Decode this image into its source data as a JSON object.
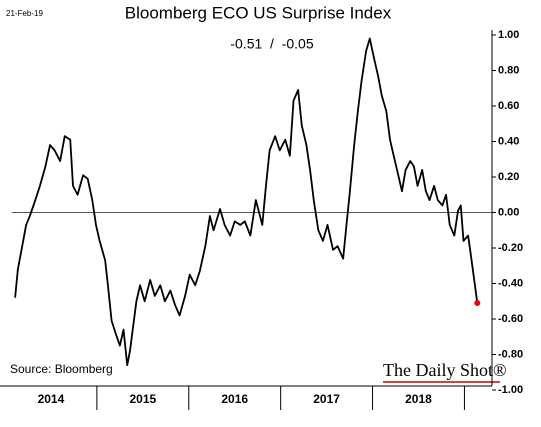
{
  "chart_data": {
    "type": "line",
    "title": "Bloomberg ECO US Surprise Index",
    "date_note": "21-Feb-19",
    "subtitle": "-0.51  /  -0.05",
    "source": "Source: Bloomberg",
    "brand": "The Daily Shot®",
    "x": [
      2014.11,
      2014.14,
      2014.18,
      2014.23,
      2014.27,
      2014.33,
      2014.38,
      2014.44,
      2014.49,
      2014.54,
      2014.6,
      2014.65,
      2014.71,
      2014.74,
      2014.79,
      2014.85,
      2014.9,
      2014.95,
      2014.99,
      2015.03,
      2015.09,
      2015.12,
      2015.16,
      2015.21,
      2015.25,
      2015.29,
      2015.33,
      2015.36,
      2015.39,
      2015.43,
      2015.47,
      2015.52,
      2015.58,
      2015.63,
      2015.69,
      2015.74,
      2015.8,
      2015.85,
      2015.9,
      2015.96,
      2016.01,
      2016.07,
      2016.12,
      2016.18,
      2016.23,
      2016.27,
      2016.34,
      2016.39,
      2016.45,
      2016.5,
      2016.56,
      2016.61,
      2016.67,
      2016.73,
      2016.8,
      2016.84,
      2016.88,
      2016.94,
      2016.99,
      2017.05,
      2017.1,
      2017.14,
      2017.19,
      2017.23,
      2017.28,
      2017.32,
      2017.36,
      2017.41,
      2017.46,
      2017.51,
      2017.57,
      2017.62,
      2017.68,
      2017.72,
      2017.75,
      2017.8,
      2017.84,
      2017.88,
      2017.93,
      2017.97,
      2018.02,
      2018.06,
      2018.1,
      2018.15,
      2018.19,
      2018.23,
      2018.28,
      2018.32,
      2018.36,
      2018.41,
      2018.45,
      2018.49,
      2018.54,
      2018.58,
      2018.62,
      2018.67,
      2018.71,
      2018.76,
      2018.8,
      2018.84,
      2018.89,
      2018.93,
      2018.96,
      2018.99,
      2019.04,
      2019.07,
      2019.14
    ],
    "series": [
      {
        "name": "Bloomberg ECO US Surprise Index",
        "color": "#000000",
        "values": [
          -0.48,
          -0.32,
          -0.21,
          -0.07,
          -0.02,
          0.07,
          0.15,
          0.26,
          0.38,
          0.35,
          0.29,
          0.43,
          0.41,
          0.15,
          0.1,
          0.21,
          0.19,
          0.07,
          -0.07,
          -0.16,
          -0.27,
          -0.41,
          -0.61,
          -0.69,
          -0.75,
          -0.66,
          -0.86,
          -0.78,
          -0.66,
          -0.5,
          -0.41,
          -0.5,
          -0.38,
          -0.47,
          -0.41,
          -0.5,
          -0.44,
          -0.52,
          -0.58,
          -0.47,
          -0.35,
          -0.41,
          -0.33,
          -0.19,
          -0.02,
          -0.1,
          0.02,
          -0.07,
          -0.13,
          -0.05,
          -0.07,
          -0.05,
          -0.13,
          0.07,
          -0.07,
          0.15,
          0.35,
          0.43,
          0.35,
          0.41,
          0.32,
          0.63,
          0.69,
          0.49,
          0.38,
          0.24,
          0.07,
          -0.1,
          -0.16,
          -0.07,
          -0.21,
          -0.19,
          -0.26,
          -0.05,
          0.1,
          0.38,
          0.57,
          0.74,
          0.91,
          0.98,
          0.86,
          0.77,
          0.66,
          0.57,
          0.41,
          0.32,
          0.21,
          0.12,
          0.24,
          0.29,
          0.26,
          0.15,
          0.24,
          0.12,
          0.07,
          0.15,
          0.07,
          0.04,
          0.1,
          -0.07,
          -0.13,
          0.01,
          0.04,
          -0.16,
          -0.13,
          -0.24,
          -0.51
        ]
      }
    ],
    "last_point_color": "#e8000b",
    "xlim": [
      2014,
      2019.3
    ],
    "xticks": [
      {
        "value": 2014,
        "label": "2014"
      },
      {
        "value": 2015,
        "label": "2015"
      },
      {
        "value": 2016,
        "label": "2016"
      },
      {
        "value": 2017,
        "label": "2017"
      },
      {
        "value": 2018,
        "label": "2018"
      }
    ],
    "ylim": [
      -1,
      1
    ],
    "yticks": [
      {
        "value": 1,
        "label": "1.00"
      },
      {
        "value": 0.8,
        "label": "0.80"
      },
      {
        "value": 0.6,
        "label": "0.60"
      },
      {
        "value": 0.4,
        "label": "0.40"
      },
      {
        "value": 0.2,
        "label": "0.20"
      },
      {
        "value": 0,
        "label": "0.00"
      },
      {
        "value": -0.2,
        "label": "-0.20"
      },
      {
        "value": -0.4,
        "label": "-0.40"
      },
      {
        "value": -0.6,
        "label": "-0.60"
      },
      {
        "value": -0.8,
        "label": "-0.80"
      },
      {
        "value": -1,
        "label": "-1.00"
      }
    ],
    "zero_line": true
  }
}
